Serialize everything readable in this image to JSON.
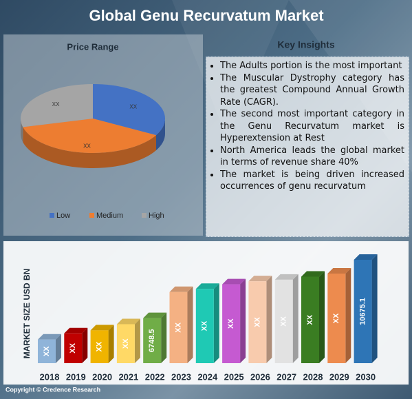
{
  "title": "Global Genu Recurvatum Market",
  "chart_data": [
    {
      "type": "pie",
      "title": "Price Range",
      "categories": [
        "Low",
        "Medium",
        "High"
      ],
      "values": [
        33,
        38,
        29
      ],
      "value_labels": [
        "XX",
        "XX",
        "XX"
      ],
      "colors": [
        "#4472c4",
        "#ed7d31",
        "#a5a5a5"
      ]
    },
    {
      "type": "bar",
      "y_label": "MARKET SIZE USD BN",
      "categories": [
        "2018",
        "2019",
        "2020",
        "2021",
        "2022",
        "2023",
        "2024",
        "2025",
        "2026",
        "2027",
        "2028",
        "2029",
        "2030"
      ],
      "values": [
        5305,
        5718,
        5924,
        6338,
        6748.5,
        8507,
        8714,
        9024,
        9230,
        9334,
        9540,
        9747,
        10675.1
      ],
      "value_labels": [
        "XX",
        "XX",
        "XX",
        "XX",
        "6748.5",
        "XX",
        "XX",
        "XX",
        "XX",
        "XX",
        "XX",
        "XX",
        "10675.1"
      ],
      "colors": [
        "#8fb4d9",
        "#c00000",
        "#f0b400",
        "#ffd966",
        "#70ad47",
        "#f4b183",
        "#1fc9b4",
        "#c55ad1",
        "#f8cbad",
        "#e2e2e2",
        "#3a7d22",
        "#ed8b4e",
        "#2e75b6"
      ]
    }
  ],
  "key_insights": {
    "title": "Key Insights",
    "items": [
      "The Adults portion is the most important",
      "The Muscular Dystrophy category has the greatest Compound Annual Growth Rate (CAGR).",
      "The second most important category in the Genu Recurvatum market is Hyperextension at Rest",
      "North America leads the global market in terms of revenue share 40%",
      "The market is being driven increased occurrences of genu recurvatum"
    ]
  },
  "copyright": "Copyright © Credence Research"
}
